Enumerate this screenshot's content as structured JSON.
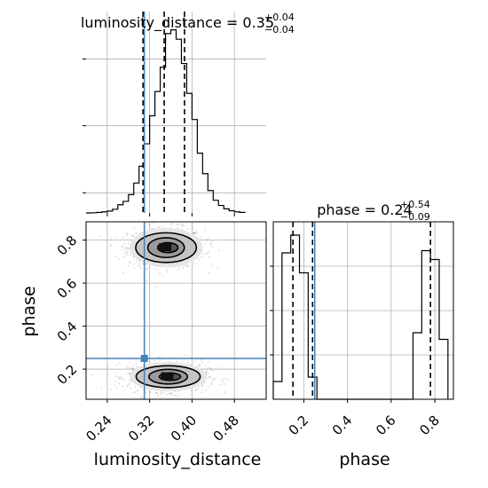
{
  "chart_data": {
    "type": "corner",
    "parameters": [
      "luminosity_distance",
      "phase"
    ],
    "truths": {
      "luminosity_distance": 0.31,
      "phase": 0.25
    },
    "grid": true,
    "panels": {
      "luminosity_distance_hist": {
        "type": "histogram",
        "title_main": "luminosity_distance = 0.35",
        "title_plus": "+0.04",
        "title_minus": "−0.04",
        "xlim": [
          0.2,
          0.54
        ],
        "bin_edges": [
          0.2,
          0.21,
          0.22,
          0.23,
          0.24,
          0.25,
          0.26,
          0.27,
          0.28,
          0.29,
          0.3,
          0.31,
          0.32,
          0.33,
          0.34,
          0.35,
          0.36,
          0.37,
          0.38,
          0.39,
          0.4,
          0.41,
          0.42,
          0.43,
          0.44,
          0.45,
          0.46,
          0.47,
          0.48,
          0.49,
          0.5
        ],
        "counts": [
          0,
          1,
          3,
          6,
          10,
          20,
          44,
          62,
          98,
          160,
          250,
          370,
          520,
          650,
          780,
          960,
          980,
          930,
          800,
          640,
          500,
          320,
          210,
          120,
          68,
          40,
          22,
          12,
          6,
          3
        ],
        "quantiles": [
          0.3075,
          0.3475,
          0.3858
        ]
      },
      "phase_hist": {
        "type": "histogram",
        "title_main": "phase = 0.24",
        "title_plus": "+0.54",
        "title_minus": "−0.09",
        "xlim": [
          0.06,
          0.885
        ],
        "bin_edges": [
          0.06,
          0.1,
          0.14,
          0.18,
          0.22,
          0.26,
          0.3,
          0.34,
          0.38,
          0.42,
          0.46,
          0.5,
          0.54,
          0.58,
          0.62,
          0.66,
          0.7,
          0.74,
          0.78,
          0.82,
          0.86
        ],
        "counts": [
          8,
          66,
          74,
          57,
          10,
          0,
          0,
          0,
          0,
          0,
          0,
          0,
          0,
          0,
          0,
          0,
          30,
          67,
          63,
          27
        ],
        "quantiles": [
          0.15,
          0.24,
          0.78
        ],
        "ylim_max": 80
      },
      "joint": {
        "type": "contour",
        "xlabel": "luminosity_distance",
        "ylabel": "phase",
        "xlim": [
          0.2,
          0.54
        ],
        "ylim": [
          0.06,
          0.885
        ],
        "modes": [
          {
            "center": [
              0.351,
              0.765
            ],
            "spread": [
              0.036,
              0.046
            ]
          },
          {
            "center": [
              0.355,
              0.165
            ],
            "spread": [
              0.038,
              0.034
            ]
          }
        ],
        "truth_marker": [
          0.31,
          0.25
        ]
      }
    },
    "ticks": {
      "luminosity_distance": [
        "0.24",
        "0.32",
        "0.40",
        "0.48"
      ],
      "phase_x": [
        "0.2",
        "0.4",
        "0.6",
        "0.8"
      ],
      "phase_y": [
        "0.2",
        "0.4",
        "0.6",
        "0.8"
      ]
    },
    "colors": {
      "truth": "#4682b4",
      "hist": "#000000",
      "grid": "#b0b0b0",
      "quantile": "#000000"
    }
  }
}
